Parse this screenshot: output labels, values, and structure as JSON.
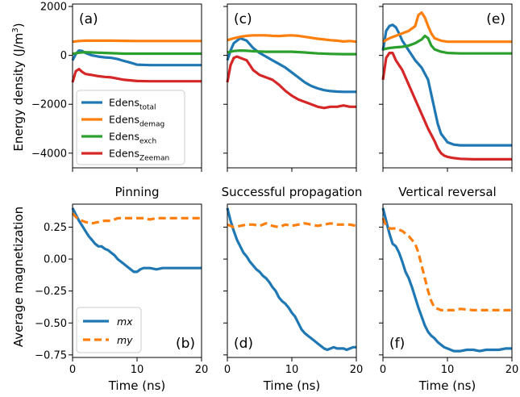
{
  "figure": {
    "top_ylabel": "Energy density (J/m",
    "top_ylabel_sup": "3",
    "top_ylabel_close": ")",
    "bottom_ylabel": "Average magnetization",
    "xlabel": "Time (ns)"
  },
  "colors": {
    "total": "#1f77b4",
    "demag": "#ff7f0e",
    "exch": "#2ca02c",
    "zeeman": "#d62728",
    "mx": "#1f77b4",
    "my": "#ff7f0e"
  },
  "chart_data": [
    {
      "id": "a",
      "letter": "(a)",
      "type": "line",
      "ylabel": "Energy density (J/m3)",
      "xlim": [
        0,
        20
      ],
      "ylim": [
        -4600,
        2100
      ],
      "yticks": [
        2000,
        0,
        -2000,
        -4000
      ],
      "ytick_labels": [
        "2000",
        "0",
        "−2000",
        "−4000"
      ],
      "legend": {
        "entries": [
          {
            "base": "Edens",
            "sub": "total"
          },
          {
            "base": "Edens",
            "sub": "demag"
          },
          {
            "base": "Edens",
            "sub": "exch"
          },
          {
            "base": "Edens",
            "sub": "Zeeman"
          }
        ]
      },
      "series": [
        {
          "name": "Edens_total",
          "key": "total",
          "x": [
            0,
            0.5,
            1,
            1.5,
            2,
            3,
            4,
            5,
            6,
            7,
            8,
            9,
            10,
            12,
            14,
            16,
            18,
            20
          ],
          "y": [
            -200,
            50,
            200,
            180,
            100,
            0,
            -50,
            -80,
            -100,
            -150,
            -230,
            -300,
            -380,
            -400,
            -400,
            -400,
            -400,
            -400
          ]
        },
        {
          "name": "Edens_demag",
          "key": "demag",
          "x": [
            0,
            1,
            2,
            4,
            6,
            8,
            10,
            12,
            14,
            16,
            18,
            20
          ],
          "y": [
            560,
            590,
            600,
            600,
            600,
            595,
            590,
            590,
            590,
            590,
            590,
            590
          ]
        },
        {
          "name": "Edens_exch",
          "key": "exch",
          "x": [
            0,
            1,
            2,
            3,
            4,
            6,
            8,
            10,
            12,
            14,
            16,
            18,
            20
          ],
          "y": [
            60,
            110,
            130,
            120,
            110,
            90,
            70,
            70,
            70,
            70,
            70,
            70,
            70
          ]
        },
        {
          "name": "Edens_Zeeman",
          "key": "zeeman",
          "x": [
            0,
            0.5,
            1,
            1.5,
            2,
            3,
            4,
            5,
            6,
            7,
            8,
            10,
            12,
            14,
            16,
            18,
            20
          ],
          "y": [
            -1100,
            -650,
            -560,
            -680,
            -760,
            -800,
            -850,
            -880,
            -900,
            -950,
            -1000,
            -1050,
            -1060,
            -1060,
            -1060,
            -1060,
            -1060
          ]
        }
      ]
    },
    {
      "id": "c",
      "letter": "(c)",
      "type": "line",
      "xlim": [
        0,
        20
      ],
      "ylim": [
        -4600,
        2100
      ],
      "series": [
        {
          "name": "Edens_total",
          "key": "total",
          "x": [
            0,
            0.5,
            1,
            2,
            3,
            4,
            5,
            6,
            7,
            8,
            9,
            10,
            11,
            12,
            13,
            14,
            15,
            16,
            17,
            18,
            19,
            20
          ],
          "y": [
            -200,
            200,
            500,
            700,
            600,
            300,
            100,
            -50,
            -200,
            -350,
            -500,
            -700,
            -900,
            -1100,
            -1250,
            -1350,
            -1420,
            -1460,
            -1480,
            -1490,
            -1490,
            -1490
          ]
        },
        {
          "name": "Edens_demag",
          "key": "demag",
          "x": [
            0,
            1,
            2,
            3,
            4,
            5,
            6,
            7,
            8,
            9,
            10,
            11,
            12,
            13,
            14,
            15,
            16,
            17,
            18,
            19,
            20
          ],
          "y": [
            620,
            700,
            760,
            800,
            820,
            820,
            820,
            800,
            790,
            810,
            820,
            800,
            760,
            720,
            680,
            650,
            620,
            600,
            570,
            590,
            560
          ]
        },
        {
          "name": "Edens_exch",
          "key": "exch",
          "x": [
            0,
            1,
            2,
            3,
            4,
            5,
            6,
            8,
            10,
            12,
            14,
            16,
            18,
            20
          ],
          "y": [
            120,
            180,
            200,
            190,
            170,
            160,
            150,
            150,
            150,
            120,
            80,
            60,
            50,
            50
          ]
        },
        {
          "name": "Edens_Zeeman",
          "key": "zeeman",
          "x": [
            0,
            0.5,
            1,
            1.5,
            2,
            3,
            4,
            5,
            6,
            7,
            8,
            9,
            10,
            11,
            12,
            13,
            14,
            15,
            16,
            17,
            18,
            19,
            20
          ],
          "y": [
            -1100,
            -400,
            -100,
            -50,
            -100,
            -200,
            -600,
            -800,
            -900,
            -1000,
            -1200,
            -1450,
            -1650,
            -1800,
            -1900,
            -2000,
            -2100,
            -2150,
            -2100,
            -2100,
            -2050,
            -2100,
            -2100
          ]
        }
      ]
    },
    {
      "id": "e",
      "letter": "(e)",
      "type": "line",
      "xlim": [
        0,
        20
      ],
      "ylim": [
        -4600,
        2100
      ],
      "series": [
        {
          "name": "Edens_total",
          "key": "total",
          "x": [
            0,
            0.5,
            1,
            1.5,
            2,
            2.5,
            3,
            4,
            5,
            6,
            7,
            7.5,
            8,
            8.5,
            9,
            10,
            11,
            12,
            14,
            16,
            18,
            20
          ],
          "y": [
            200,
            1000,
            1200,
            1250,
            1150,
            900,
            600,
            200,
            -200,
            -500,
            -1000,
            -1600,
            -2200,
            -2800,
            -3200,
            -3550,
            -3650,
            -3680,
            -3680,
            -3680,
            -3680,
            -3680
          ]
        },
        {
          "name": "Edens_demag",
          "key": "demag",
          "x": [
            0,
            1,
            2,
            3,
            4,
            5,
            5.5,
            6,
            6.5,
            7,
            7.5,
            8,
            9,
            10,
            12,
            14,
            16,
            18,
            20
          ],
          "y": [
            560,
            700,
            800,
            900,
            1000,
            1200,
            1650,
            1750,
            1550,
            1200,
            900,
            700,
            600,
            560,
            560,
            560,
            560,
            560,
            560
          ]
        },
        {
          "name": "Edens_exch",
          "key": "exch",
          "x": [
            0,
            1,
            2,
            3,
            4,
            5,
            6,
            6.5,
            7,
            7.5,
            8,
            9,
            10,
            12,
            14,
            16,
            18,
            20
          ],
          "y": [
            250,
            300,
            330,
            350,
            400,
            500,
            650,
            800,
            700,
            400,
            250,
            150,
            100,
            80,
            80,
            80,
            80,
            80
          ]
        },
        {
          "name": "Edens_Zeeman",
          "key": "zeeman",
          "x": [
            0,
            0.5,
            1,
            1.5,
            2,
            3,
            4,
            5,
            6,
            7,
            8,
            8.5,
            9,
            9.5,
            10,
            11,
            12,
            14,
            16,
            18,
            20
          ],
          "y": [
            -1000,
            -100,
            100,
            100,
            -200,
            -600,
            -1200,
            -1800,
            -2400,
            -3000,
            -3500,
            -3800,
            -4000,
            -4100,
            -4150,
            -4200,
            -4230,
            -4250,
            -4250,
            -4250,
            -4250
          ]
        }
      ]
    },
    {
      "id": "b",
      "letter": "(b)",
      "title": "Pinning",
      "type": "line",
      "ylabel": "Average magnetization",
      "xlabel": "Time (ns)",
      "xlim": [
        0,
        20
      ],
      "ylim": [
        -0.77,
        0.43
      ],
      "xticks": [
        0,
        10,
        20
      ],
      "yticks": [
        0.25,
        0,
        -0.25,
        -0.5,
        -0.75
      ],
      "ytick_labels": [
        "0.25",
        "0.00",
        "−0.25",
        "−0.50",
        "−0.75"
      ],
      "legend": {
        "entries": [
          {
            "label": "mx"
          },
          {
            "label": "my"
          }
        ]
      },
      "series": [
        {
          "name": "mx",
          "key": "mx",
          "dashed": false,
          "x": [
            0,
            0.5,
            1,
            1.5,
            2,
            2.5,
            3,
            3.5,
            4,
            4.5,
            5,
            5.5,
            6,
            6.5,
            7,
            7.5,
            8,
            8.5,
            9,
            9.5,
            10,
            10.5,
            11,
            12,
            13,
            14,
            15,
            16,
            17,
            18,
            19,
            20
          ],
          "y": [
            0.4,
            0.35,
            0.3,
            0.26,
            0.22,
            0.18,
            0.15,
            0.12,
            0.1,
            0.1,
            0.08,
            0.07,
            0.05,
            0.03,
            0.0,
            -0.02,
            -0.04,
            -0.06,
            -0.08,
            -0.1,
            -0.1,
            -0.08,
            -0.07,
            -0.07,
            -0.08,
            -0.07,
            -0.07,
            -0.07,
            -0.07,
            -0.07,
            -0.07,
            -0.07
          ]
        },
        {
          "name": "my",
          "key": "my",
          "dashed": true,
          "x": [
            0,
            0.5,
            1,
            1.5,
            2,
            3,
            4,
            5,
            6,
            7,
            8,
            9,
            10,
            11,
            12,
            13,
            14,
            15,
            16,
            17,
            18,
            19,
            20
          ],
          "y": [
            0.36,
            0.33,
            0.31,
            0.3,
            0.29,
            0.28,
            0.29,
            0.3,
            0.3,
            0.32,
            0.32,
            0.32,
            0.32,
            0.32,
            0.31,
            0.32,
            0.32,
            0.32,
            0.32,
            0.32,
            0.32,
            0.32,
            0.32
          ]
        }
      ]
    },
    {
      "id": "d",
      "letter": "(d)",
      "title": "Successful propagation",
      "type": "line",
      "xlabel": "Time (ns)",
      "xlim": [
        0,
        20
      ],
      "ylim": [
        -0.77,
        0.43
      ],
      "xticks": [
        0,
        10,
        20
      ],
      "series": [
        {
          "name": "mx",
          "key": "mx",
          "dashed": false,
          "x": [
            0,
            0.5,
            1,
            1.5,
            2,
            2.5,
            3,
            3.5,
            4,
            4.5,
            5,
            5.5,
            6,
            6.5,
            7,
            7.5,
            8,
            8.5,
            9,
            9.5,
            10,
            10.5,
            11,
            11.5,
            12,
            12.5,
            13,
            13.5,
            14,
            14.5,
            15,
            15.5,
            16,
            16.5,
            17,
            17.5,
            18,
            18.5,
            19,
            19.5,
            20
          ],
          "y": [
            0.4,
            0.3,
            0.22,
            0.15,
            0.1,
            0.05,
            0.02,
            -0.02,
            -0.05,
            -0.08,
            -0.1,
            -0.13,
            -0.15,
            -0.18,
            -0.22,
            -0.25,
            -0.3,
            -0.33,
            -0.35,
            -0.38,
            -0.42,
            -0.45,
            -0.5,
            -0.55,
            -0.58,
            -0.6,
            -0.62,
            -0.64,
            -0.66,
            -0.68,
            -0.7,
            -0.71,
            -0.7,
            -0.69,
            -0.7,
            -0.7,
            -0.7,
            -0.71,
            -0.7,
            -0.69,
            -0.69
          ]
        },
        {
          "name": "my",
          "key": "my",
          "dashed": true,
          "x": [
            0,
            1,
            2,
            3,
            4,
            5,
            6,
            7,
            8,
            9,
            10,
            11,
            12,
            13,
            14,
            15,
            16,
            17,
            18,
            19,
            20
          ],
          "y": [
            0.27,
            0.25,
            0.26,
            0.27,
            0.27,
            0.26,
            0.28,
            0.26,
            0.25,
            0.27,
            0.26,
            0.27,
            0.28,
            0.27,
            0.26,
            0.27,
            0.28,
            0.27,
            0.27,
            0.27,
            0.26
          ]
        }
      ]
    },
    {
      "id": "f",
      "letter": "(f)",
      "title": "Vertical reversal",
      "type": "line",
      "xlabel": "Time (ns)",
      "xlim": [
        0,
        20
      ],
      "ylim": [
        -0.77,
        0.43
      ],
      "xticks": [
        0,
        10,
        20
      ],
      "series": [
        {
          "name": "mx",
          "key": "mx",
          "dashed": false,
          "x": [
            0,
            0.5,
            1,
            1.5,
            2,
            2.5,
            3,
            3.5,
            4,
            4.5,
            5,
            5.5,
            6,
            6.5,
            7,
            7.5,
            8,
            8.5,
            9,
            9.5,
            10,
            10.5,
            11,
            12,
            13,
            14,
            15,
            16,
            17,
            18,
            19,
            20
          ],
          "y": [
            0.4,
            0.3,
            0.2,
            0.12,
            0.1,
            0.05,
            -0.02,
            -0.1,
            -0.15,
            -0.22,
            -0.3,
            -0.38,
            -0.45,
            -0.52,
            -0.57,
            -0.6,
            -0.62,
            -0.65,
            -0.67,
            -0.69,
            -0.7,
            -0.71,
            -0.72,
            -0.72,
            -0.71,
            -0.71,
            -0.72,
            -0.71,
            -0.71,
            -0.71,
            -0.7,
            -0.7
          ]
        },
        {
          "name": "my",
          "key": "my",
          "dashed": true,
          "x": [
            0,
            0.5,
            1,
            2,
            3,
            4,
            4.5,
            5,
            5.5,
            6,
            6.5,
            7,
            7.5,
            8,
            8.5,
            9,
            10,
            11,
            12,
            14,
            16,
            18,
            20
          ],
          "y": [
            0.32,
            0.26,
            0.24,
            0.24,
            0.22,
            0.18,
            0.15,
            0.12,
            0.05,
            -0.05,
            -0.15,
            -0.25,
            -0.33,
            -0.38,
            -0.39,
            -0.4,
            -0.4,
            -0.4,
            -0.39,
            -0.4,
            -0.4,
            -0.4,
            -0.4
          ]
        }
      ]
    }
  ]
}
